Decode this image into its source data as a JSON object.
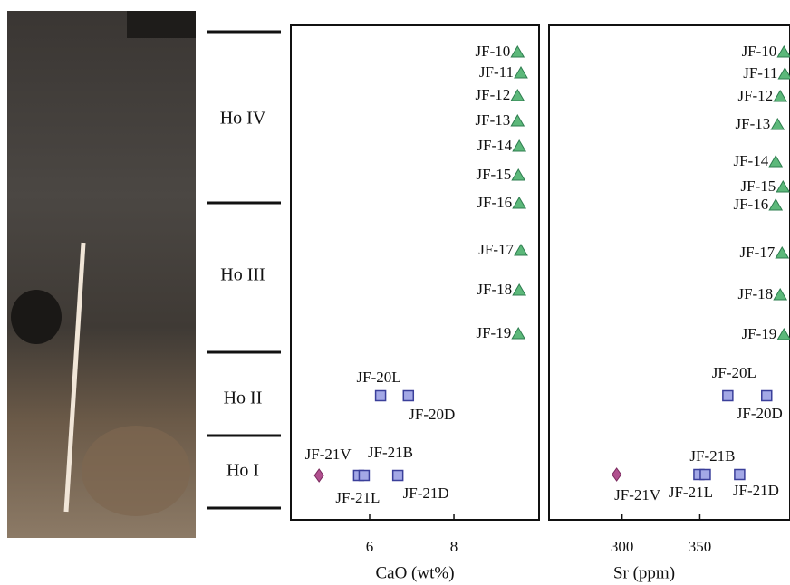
{
  "units": [
    "Ho IV",
    "Ho III",
    "Ho II",
    "Ho I"
  ],
  "chart_data": [
    {
      "type": "scatter",
      "xlabel": "CaO (wt%)",
      "xlim": [
        4.13,
        10.02
      ],
      "xticks": [
        6,
        8
      ],
      "series": [
        {
          "marker": "triangle",
          "color": "#5cb87a",
          "labels": [
            "JF-10",
            "JF-11",
            "JF-12",
            "JF-13",
            "JF-14",
            "JF-15",
            "JF-16",
            "JF-17",
            "JF-18",
            "JF-19"
          ],
          "values": [
            9.51,
            9.59,
            9.51,
            9.51,
            9.55,
            9.53,
            9.55,
            9.59,
            9.55,
            9.53
          ]
        },
        {
          "marker": "square",
          "color": "#a3a8e6",
          "labels": [
            "JF-20L",
            "JF-20D",
            "JF-21L",
            "JF-21B",
            "JF-21D"
          ],
          "values": [
            6.26,
            6.92,
            5.74,
            5.87,
            6.67
          ]
        },
        {
          "marker": "diamond",
          "color": "#b0508e",
          "labels": [
            "JF-21V"
          ],
          "values": [
            4.8
          ]
        }
      ]
    },
    {
      "type": "scatter",
      "xlabel": "Sr (ppm)",
      "xlim": [
        253,
        408
      ],
      "xticks": [
        300,
        350
      ],
      "series": [
        {
          "marker": "triangle",
          "color": "#5cb87a",
          "labels": [
            "JF-10",
            "JF-11",
            "JF-12",
            "JF-13",
            "JF-14",
            "JF-15",
            "JF-16",
            "JF-17",
            "JF-18",
            "JF-19"
          ],
          "values": [
            404.1,
            404.7,
            401.7,
            400.0,
            398.8,
            403.5,
            398.8,
            402.9,
            401.7,
            404.1
          ]
        },
        {
          "marker": "square",
          "color": "#a3a8e6",
          "labels": [
            "JF-20L",
            "JF-20D",
            "JF-21L",
            "JF-21B",
            "JF-21D"
          ],
          "values": [
            368.0,
            393.0,
            349.4,
            353.5,
            375.6
          ]
        },
        {
          "marker": "diamond",
          "color": "#b0508e",
          "labels": [
            "JF-21V"
          ],
          "values": [
            296.5
          ]
        }
      ]
    }
  ]
}
